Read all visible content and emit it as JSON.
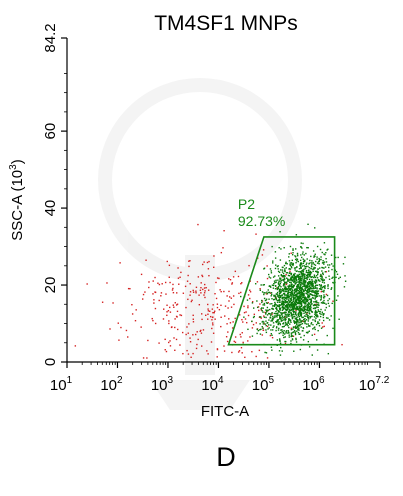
{
  "chart_data": {
    "type": "scatter",
    "title": "TM4SF1 MNPs",
    "xlabel": "FITC-A",
    "ylabel": "SSC-A  (10",
    "ylabel_sup": "3",
    "ylabel_suffix": ")",
    "x_scale": "log",
    "xlim_exp": [
      1,
      7.2
    ],
    "ylim": [
      0,
      84.2
    ],
    "x_ticks": [
      {
        "base": "10",
        "exp": "1",
        "value": 1
      },
      {
        "base": "10",
        "exp": "2",
        "value": 2
      },
      {
        "base": "10",
        "exp": "3",
        "value": 3
      },
      {
        "base": "10",
        "exp": "4",
        "value": 4
      },
      {
        "base": "10",
        "exp": "5",
        "value": 5
      },
      {
        "base": "10",
        "exp": "6",
        "value": 6
      },
      {
        "base": "10",
        "exp": "7.2",
        "value": 7.2
      }
    ],
    "y_ticks": [
      {
        "label": "0",
        "value": 0
      },
      {
        "label": "20",
        "value": 20
      },
      {
        "label": "40",
        "value": 40
      },
      {
        "label": "60",
        "value": 60
      },
      {
        "label": "84.2",
        "value": 84.2
      }
    ],
    "gate": {
      "name": "P2",
      "percent": "92.73%",
      "color": "#1a8a1a",
      "polygon_log10x_y": [
        [
          4.2,
          4.5
        ],
        [
          4.9,
          32.5
        ],
        [
          6.3,
          32.5
        ],
        [
          6.3,
          4.5
        ]
      ]
    },
    "populations": [
      {
        "color": "#d42020",
        "center_log10x": 3.8,
        "center_y": 14,
        "spread_log10x": 0.9,
        "spread_y": 7,
        "count": 360
      },
      {
        "color": "#0a7a0a",
        "center_log10x": 5.55,
        "center_y": 17,
        "spread_log10x": 0.32,
        "spread_y": 5.2,
        "count": 1800
      }
    ],
    "grid": false
  },
  "panel_label": "D",
  "colors": {
    "gated": "#0a7a0a",
    "ungated": "#d42020",
    "gate_line": "#1a8a1a",
    "axis": "#000000"
  }
}
